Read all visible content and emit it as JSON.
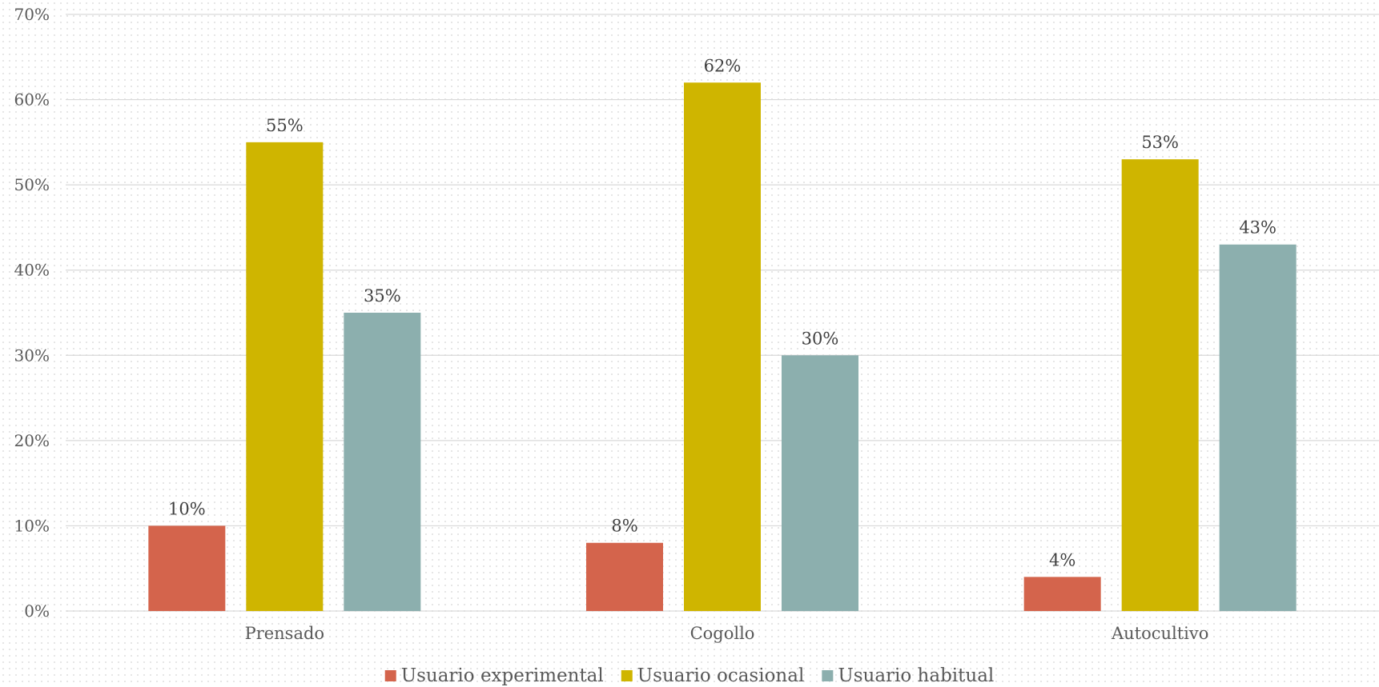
{
  "chart_data": {
    "type": "bar",
    "categories": [
      "Prensado",
      "Cogollo",
      "Autocultivo"
    ],
    "series": [
      {
        "name": "Usuario experimental",
        "color": "#d4644c",
        "values": [
          10,
          8,
          4
        ],
        "labels": [
          "10%",
          "8%",
          "4%"
        ]
      },
      {
        "name": "Usuario ocasional",
        "color": "#cfb500",
        "values": [
          55,
          62,
          53
        ],
        "labels": [
          "55%",
          "62%",
          "53%"
        ]
      },
      {
        "name": "Usuario habitual",
        "color": "#8cafae",
        "values": [
          35,
          30,
          43
        ],
        "labels": [
          "35%",
          "30%",
          "43%"
        ]
      }
    ],
    "y_ticks": [
      "0%",
      "10%",
      "20%",
      "30%",
      "40%",
      "50%",
      "60%",
      "70%"
    ],
    "ylim": [
      0,
      70
    ],
    "legend_position": "bottom",
    "grid": true,
    "title": "",
    "xlabel": "",
    "ylabel": ""
  }
}
